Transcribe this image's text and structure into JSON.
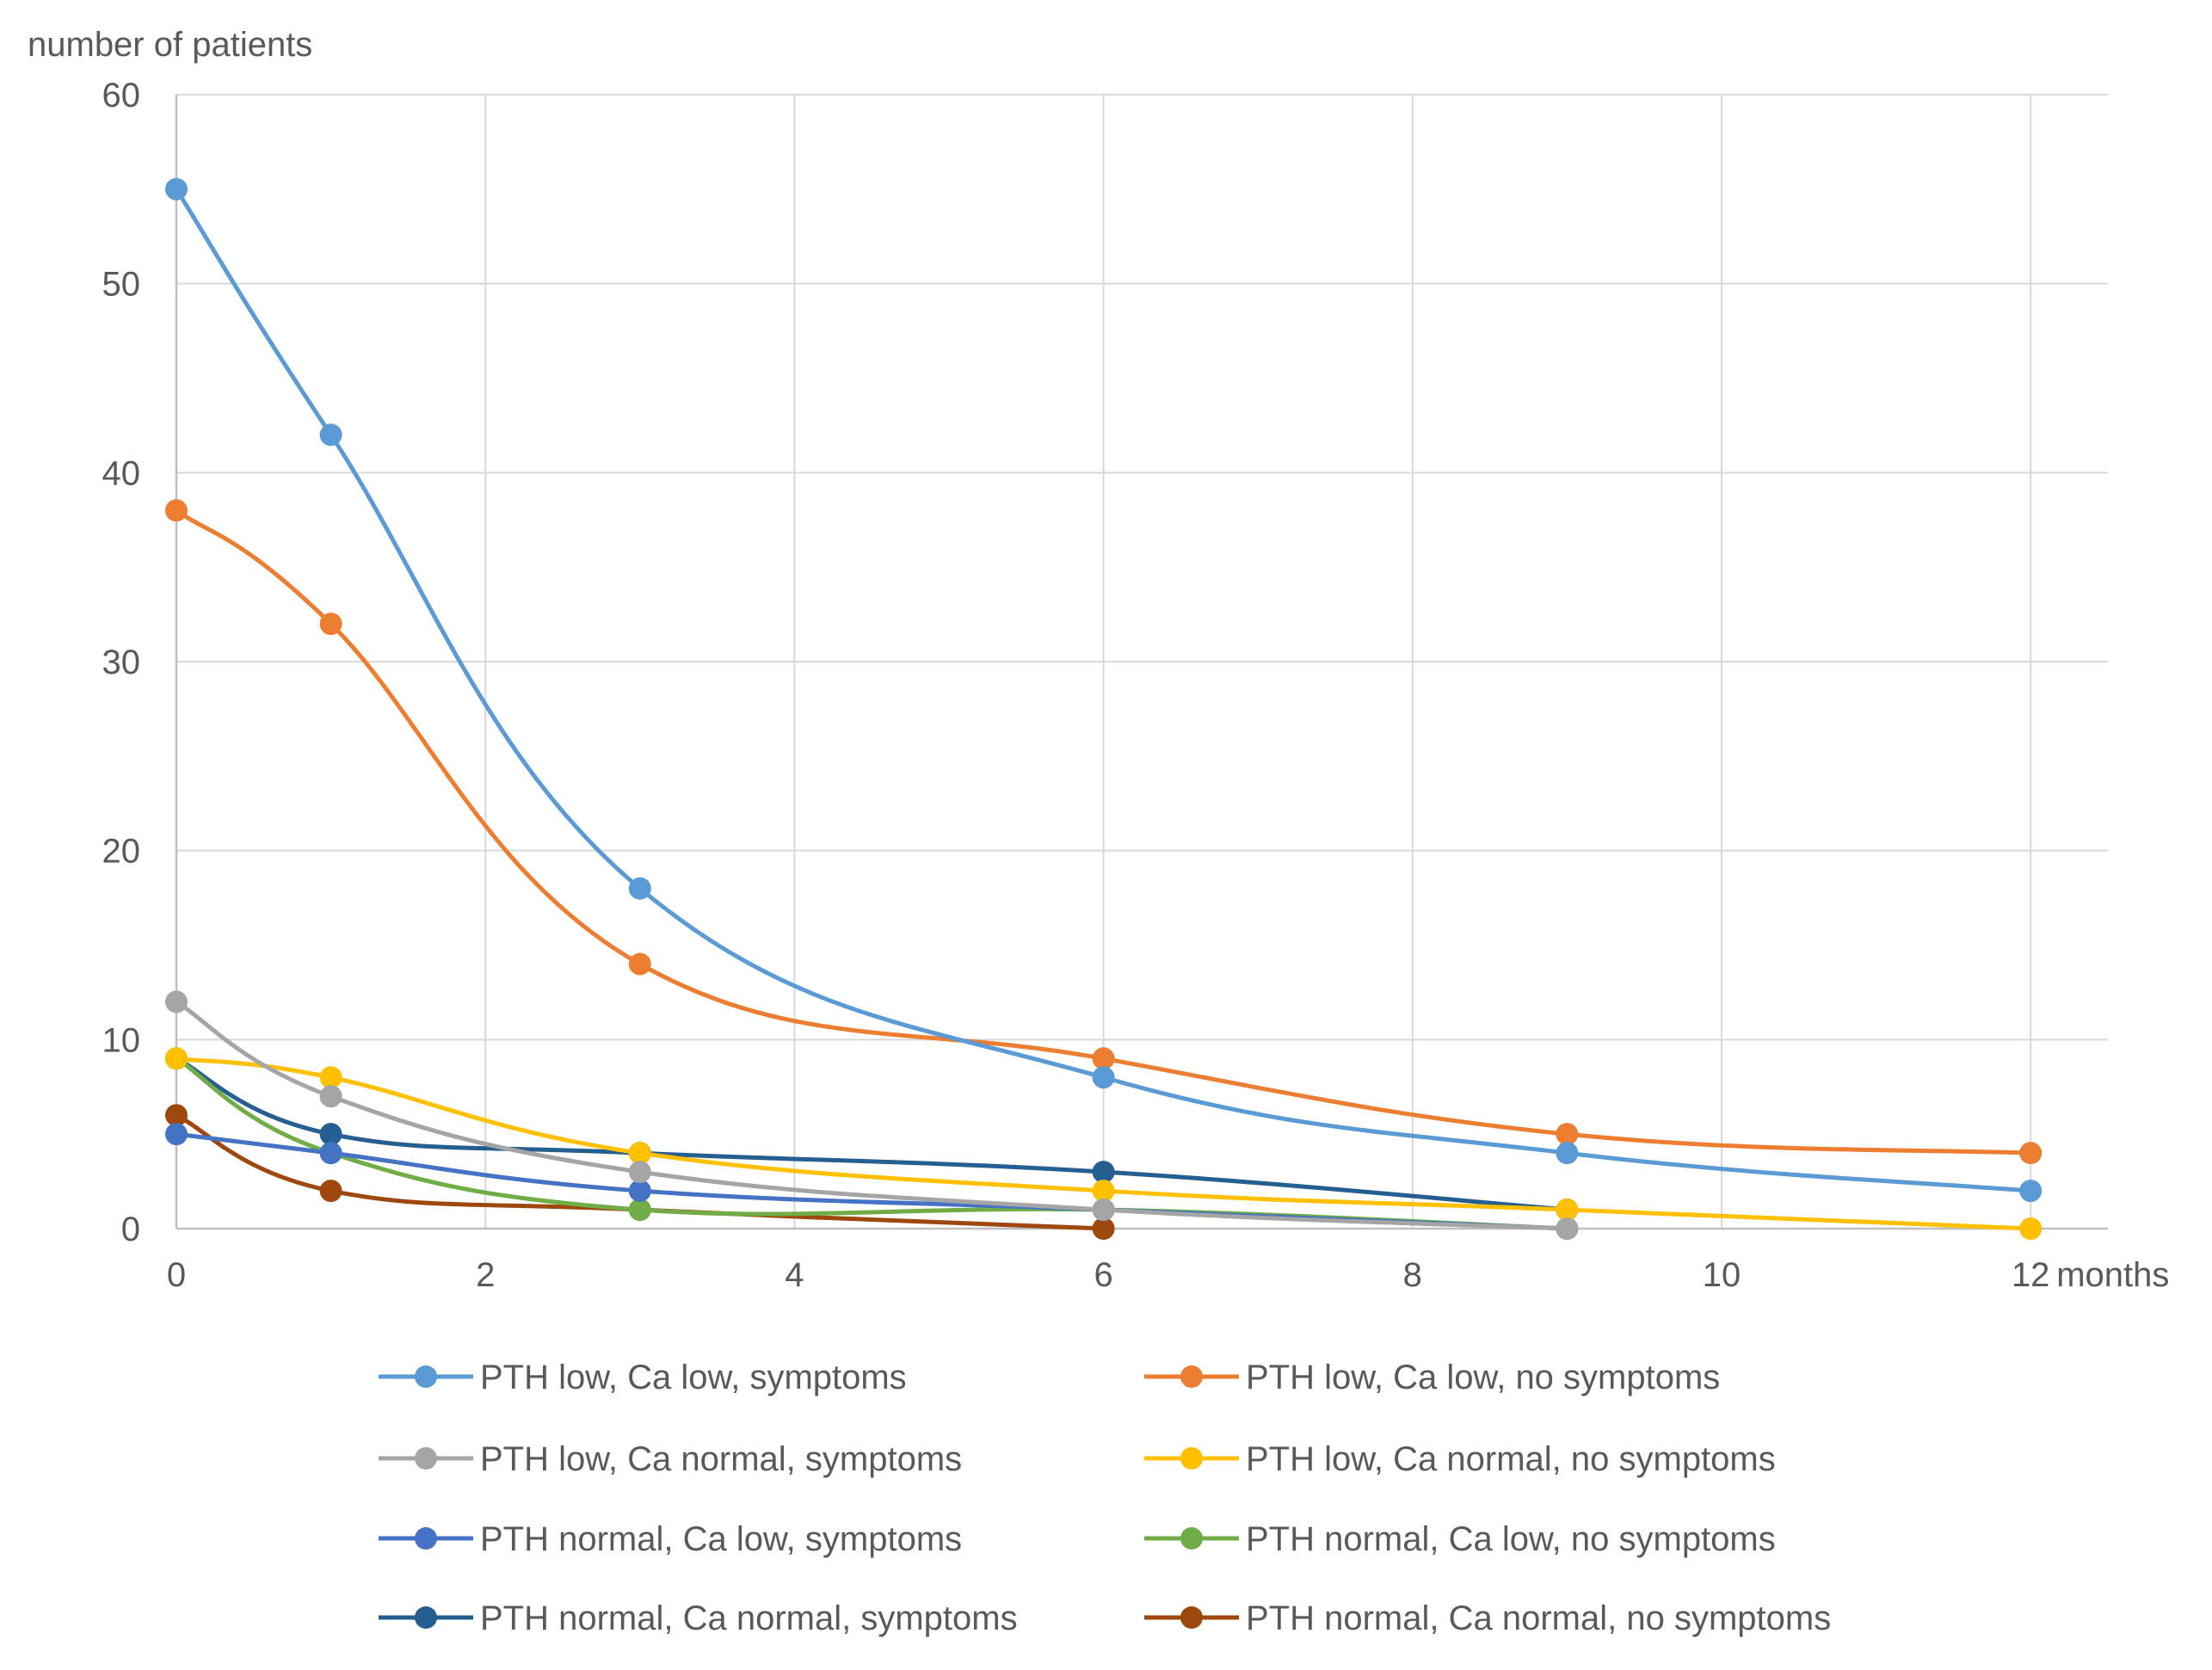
{
  "chart_data": {
    "type": "line",
    "title": "",
    "ylabel": "number of patients",
    "xlabel": "months",
    "xlim": [
      0,
      12.5
    ],
    "ylim": [
      0,
      60
    ],
    "x_ticks": [
      0,
      2,
      4,
      6,
      8,
      10,
      12
    ],
    "y_ticks": [
      0,
      10,
      20,
      30,
      40,
      50,
      60
    ],
    "grid": true,
    "legend_position": "bottom",
    "series": [
      {
        "name": "PTH low, Ca low, symptoms",
        "color": "#5B9BD5",
        "x": [
          0,
          1,
          3,
          6,
          9,
          12
        ],
        "values": [
          55,
          42,
          18,
          8,
          4,
          2
        ]
      },
      {
        "name": "PTH low, Ca low, no symptoms",
        "color": "#ED7D31",
        "x": [
          0,
          1,
          3,
          6,
          9,
          12
        ],
        "values": [
          38,
          32,
          14,
          9,
          5,
          4
        ]
      },
      {
        "name": "PTH low, Ca normal, symptoms",
        "color": "#A5A5A5",
        "x": [
          0,
          1,
          3,
          6,
          9
        ],
        "values": [
          12,
          7,
          3,
          1,
          0
        ]
      },
      {
        "name": "PTH low, Ca normal, no symptoms",
        "color": "#FFC000",
        "x": [
          0,
          1,
          3,
          6,
          9,
          12
        ],
        "values": [
          9,
          8,
          4,
          2,
          1,
          0
        ]
      },
      {
        "name": "PTH normal, Ca low, symptoms",
        "color": "#4472C4",
        "x": [
          0,
          1,
          3,
          6,
          9
        ],
        "values": [
          5,
          4,
          2,
          1,
          0
        ]
      },
      {
        "name": "PTH normal, Ca low, no symptoms",
        "color": "#70AD47",
        "x": [
          0,
          1,
          3,
          6,
          9
        ],
        "values": [
          9,
          4,
          1,
          1,
          0
        ]
      },
      {
        "name": "PTH normal, Ca normal, symptoms",
        "color": "#255E91",
        "x": [
          0,
          1,
          3,
          6,
          9
        ],
        "values": [
          9,
          5,
          4,
          3,
          1
        ]
      },
      {
        "name": "PTH normal, Ca normal, no symptoms",
        "color": "#9E480E",
        "x": [
          0,
          1,
          3,
          6
        ],
        "values": [
          6,
          2,
          1,
          0
        ]
      }
    ]
  }
}
